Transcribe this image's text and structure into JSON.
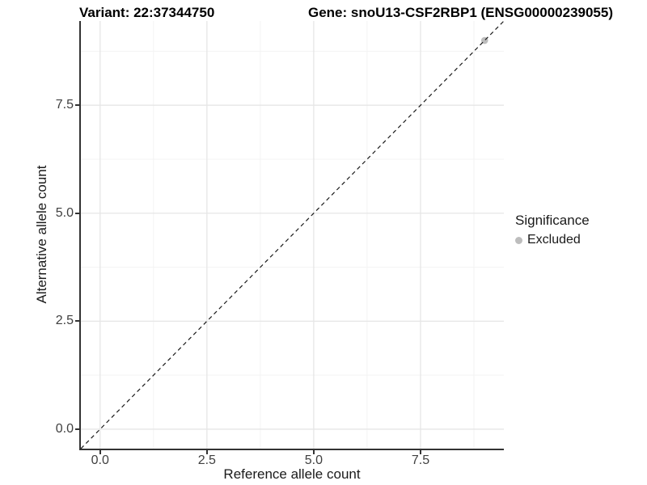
{
  "chart_data": {
    "type": "scatter",
    "titles": {
      "variant": "Variant: 22:37344750",
      "gene": "Gene: snoU13-CSF2RBP1 (ENSG00000239055)"
    },
    "xlabel": "Reference allele count",
    "ylabel": "Alternative allele count",
    "xlim": [
      -0.45,
      9.45
    ],
    "ylim": [
      -0.45,
      9.45
    ],
    "x_ticks": [
      0,
      2.5,
      5,
      7.5
    ],
    "x_tick_labels": [
      "0.0",
      "2.5",
      "5.0",
      "7.5"
    ],
    "y_ticks": [
      0,
      2.5,
      5,
      7.5
    ],
    "y_tick_labels": [
      "0.0",
      "2.5",
      "5.0",
      "7.5"
    ],
    "minor_breaks": [
      1.25,
      3.75,
      6.25,
      8.75
    ],
    "grid": true,
    "reference_line": {
      "slope": 1,
      "intercept": 0,
      "style": "dashed"
    },
    "points": [
      {
        "x": 9,
        "y": 9,
        "significance": "Excluded"
      }
    ],
    "legend": {
      "title": "Significance",
      "position": "right",
      "entries": [
        {
          "label": "Excluded",
          "color": "#bdbdbd"
        }
      ]
    }
  },
  "colors": {
    "background": "#ffffff",
    "axis_line": "#333333",
    "tick_mark": "#333333",
    "tick_label": "#404040",
    "grid_major": "#e6e6e6",
    "grid_minor": "#f3f3f3",
    "reference_line": "#1a1a1a",
    "point_excluded": "#bdbdbd",
    "title_text": "#000000",
    "axis_title_text": "#1a1a1a"
  }
}
